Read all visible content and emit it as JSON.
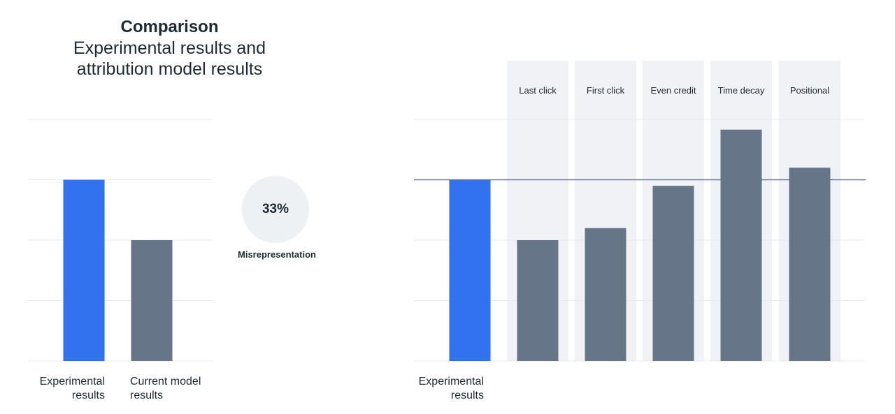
{
  "header": {
    "title": "Comparison",
    "subtitle": "Experimental results and\nattribution model results"
  },
  "badge": {
    "value": "33%",
    "label": "Misrepresentation"
  },
  "colors": {
    "experimental": "#3272ee",
    "model": "#667587",
    "column_bg": "#f0f2f5",
    "reference_line": "#667587",
    "grid": "#e6e8eb"
  },
  "chart_data": [
    {
      "type": "bar",
      "categories": [
        "Experimental\nresults",
        "Current model\nresults"
      ],
      "values": [
        3.0,
        2.0
      ],
      "ylim": [
        0,
        4
      ],
      "grid": true
    },
    {
      "type": "bar",
      "categories": [
        "Experimental\nresults",
        "Last click",
        "First click",
        "Even credit",
        "Time decay",
        "Positional"
      ],
      "values": [
        3.0,
        2.0,
        2.2,
        2.9,
        3.83,
        3.2
      ],
      "reference_value": 3.0,
      "ylim": [
        0,
        4
      ],
      "grid": true
    }
  ]
}
